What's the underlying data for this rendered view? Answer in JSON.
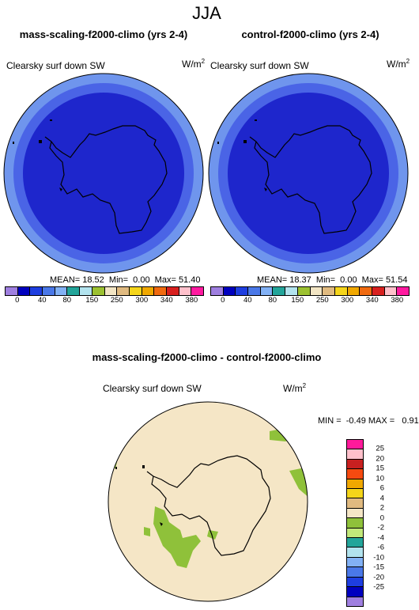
{
  "header": {
    "title": "JJA"
  },
  "colors": {
    "abs_scale": [
      "#9f7fe0",
      "#0000bf",
      "#1e3ee0",
      "#4a78e8",
      "#82b1f5",
      "#23a59a",
      "#b2e3ee",
      "#9cc131",
      "#f2e5c4",
      "#e0ba80",
      "#f5d51a",
      "#f0a800",
      "#f06a10",
      "#d8201f",
      "#ffc0cb",
      "#ff1aa0"
    ],
    "diff_scale": [
      "#ff1a9b",
      "#ffc0cb",
      "#c82020",
      "#f54a10",
      "#f0a800",
      "#f5d51a",
      "#e0ba80",
      "#f5e6c6",
      "#8fc13a",
      "#c2e87a",
      "#23a59a",
      "#b2e3ee",
      "#82b1f5",
      "#4a78e8",
      "#1e3ee0",
      "#0000bf",
      "#9f7fe0"
    ],
    "map_outer": "#6f95ed",
    "map_inner": "#1e26cc",
    "map_middle": "#4a64e6",
    "diff_background": "#f5e6c6",
    "diff_patch": "#8fc13a"
  },
  "panel_left": {
    "title": "mass-scaling-f2000-climo (yrs 2-4)",
    "variable": "Clearsky surf down SW",
    "units_base": "W/m",
    "units_exp": "2",
    "stats": "MEAN= 18.52  Min=  0.00  Max= 51.40"
  },
  "panel_right": {
    "title": "control-f2000-climo (yrs 2-4)",
    "variable": "Clearsky surf down SW",
    "units_base": "W/m",
    "units_exp": "2",
    "stats": "MEAN= 18.37  Min=  0.00  Max= 51.54"
  },
  "abs_colorbar_labels": [
    "0",
    "40",
    "80",
    "150",
    "250",
    "300",
    "340",
    "380"
  ],
  "diff_panel": {
    "title": "mass-scaling-f2000-climo - control-f2000-climo",
    "variable": "Clearsky surf down SW",
    "units_base": "W/m",
    "units_exp": "2",
    "minmax": "MIN =  -0.49 MAX =   0.91"
  },
  "diff_colorbar_labels": [
    "25",
    "20",
    "15",
    "10",
    "6",
    "4",
    "2",
    "0",
    "-2",
    "-4",
    "-6",
    "-10",
    "-15",
    "-20",
    "-25"
  ]
}
